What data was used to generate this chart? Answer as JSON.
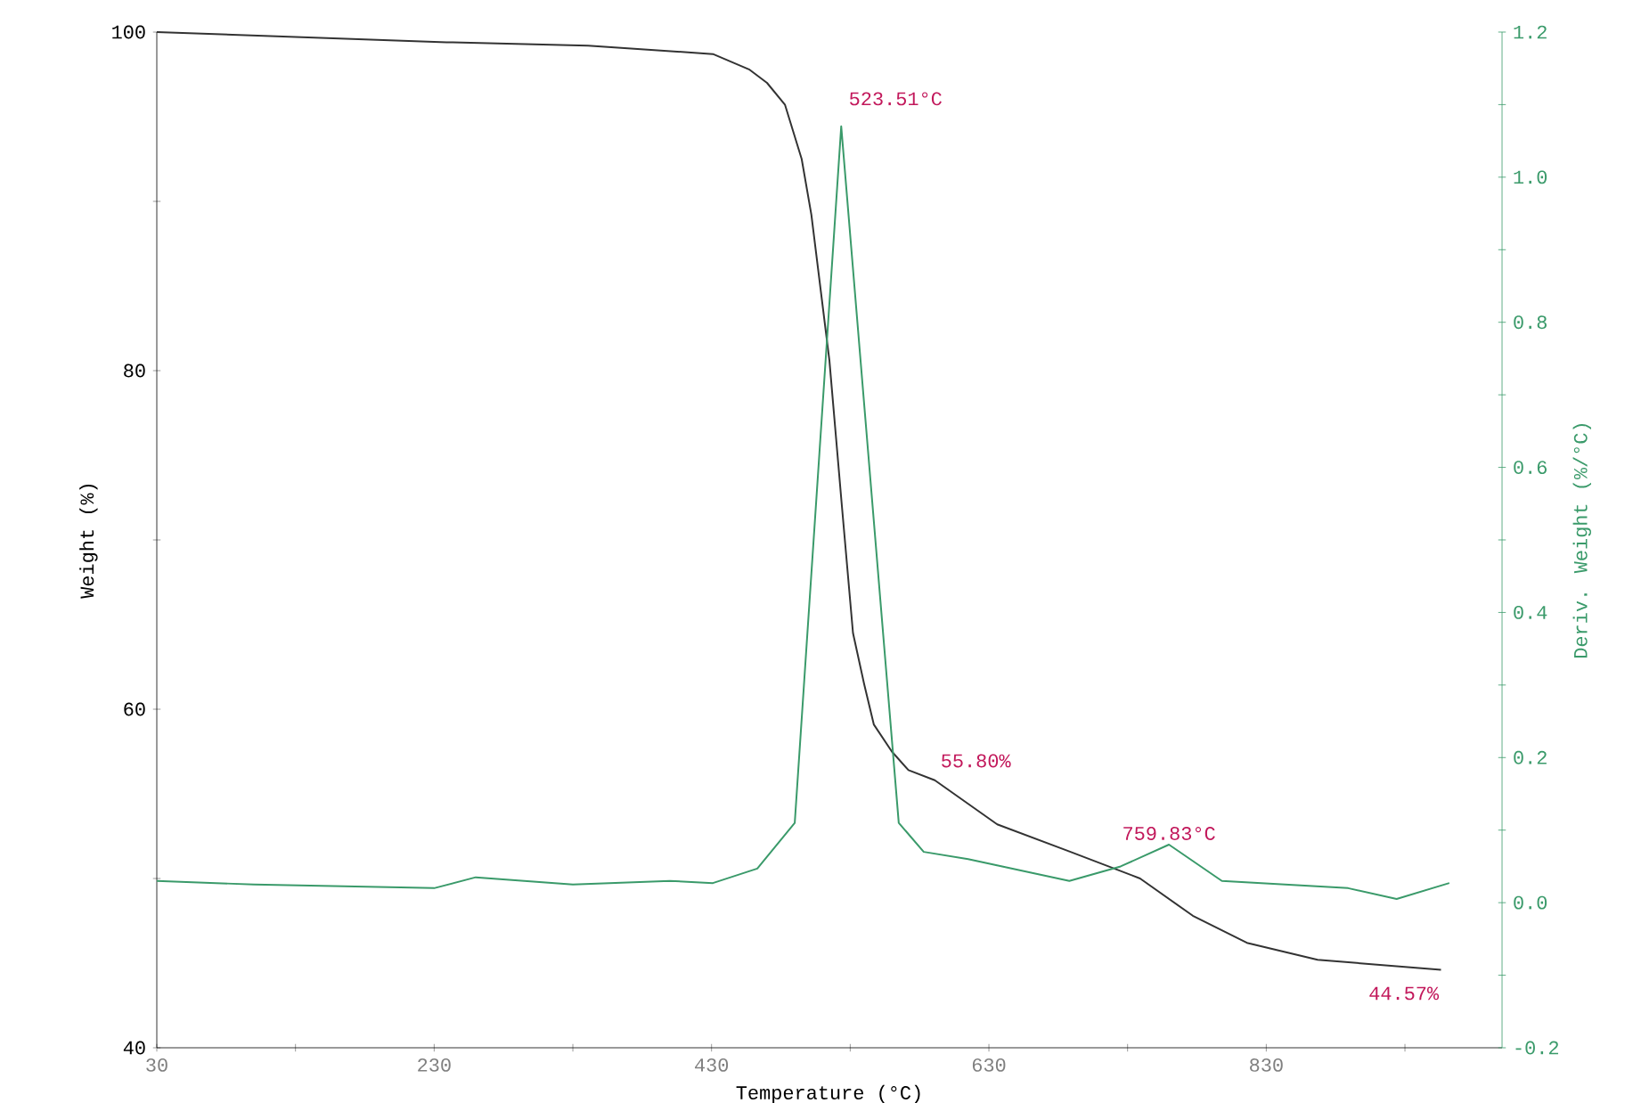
{
  "chart_data": {
    "type": "line",
    "xlabel": "Temperature (°C)",
    "ylabel": "Weight (%)",
    "y2label": "Deriv. Weight (%/°C)",
    "xlim": [
      30,
      1000
    ],
    "ylim": [
      40,
      100
    ],
    "y2lim": [
      -0.2,
      1.2
    ],
    "xticks": [
      30,
      {
        "value": 130,
        "label": null
      },
      230,
      {
        "value": 330,
        "label": null
      },
      430,
      {
        "value": 530,
        "label": null
      },
      630,
      {
        "value": 730,
        "label": null
      },
      830,
      {
        "value": 930,
        "label": null
      }
    ],
    "yticks": [
      40,
      {
        "value": 50,
        "label": null
      },
      60,
      {
        "value": 70,
        "label": null
      },
      80,
      {
        "value": 90,
        "label": null
      },
      100
    ],
    "y2ticks": [
      {
        "value": -0.2,
        "label": "-0.2"
      },
      {
        "value": -0.1,
        "label": null
      },
      {
        "value": 0,
        "label": "0.0"
      },
      {
        "value": 0.1,
        "label": null
      },
      {
        "value": 0.2,
        "label": "0.2"
      },
      {
        "value": 0.3,
        "label": null
      },
      {
        "value": 0.4,
        "label": "0.4"
      },
      {
        "value": 0.5,
        "label": null
      },
      {
        "value": 0.6,
        "label": "0.6"
      },
      {
        "value": 0.7,
        "label": null
      },
      {
        "value": 0.8,
        "label": "0.8"
      },
      {
        "value": 0.9,
        "label": null
      },
      {
        "value": 1.0,
        "label": "1.0"
      },
      {
        "value": 1.1,
        "label": null
      },
      {
        "value": 1.2,
        "label": "1.2"
      }
    ],
    "series": [
      {
        "color": "#333333",
        "x": [
          30,
          239,
          341,
          431,
          457,
          470,
          483,
          495,
          502,
          515,
          524,
          532,
          540,
          547,
          560,
          572,
          591,
          636,
          688,
          739,
          777,
          816,
          867,
          956
        ],
        "values": [
          100,
          99.4,
          99.2,
          98.7,
          97.8,
          97.0,
          95.7,
          92.5,
          89.2,
          80.6,
          72,
          64.5,
          61.5,
          59.1,
          57.5,
          56.4,
          55.8,
          53.2,
          51.6,
          50,
          47.8,
          46.2,
          45.2,
          44.6
        ]
      },
      {
        "color": "#3a9a6a",
        "axis": "y2",
        "x": [
          30,
          100,
          230,
          260,
          330,
          400,
          431,
          463,
          490,
          523.51,
          565,
          583,
          615,
          688,
          725,
          759.83,
          798,
          889,
          924,
          962
        ],
        "values": [
          0.03,
          0.025,
          0.02,
          0.035,
          0.025,
          0.03,
          0.027,
          0.047,
          0.11,
          1.07,
          0.11,
          0.07,
          0.06,
          0.03,
          0.05,
          0.08,
          0.03,
          0.02,
          0.005,
          0.027
        ]
      }
    ],
    "annotations": [
      {
        "text": "523.51°C",
        "x": 523.51,
        "y": 94.7
      },
      {
        "text": "55.80%",
        "x": 591,
        "y": 55.8
      },
      {
        "text": "759.83°C",
        "x": 759.83,
        "y": 51.3
      },
      {
        "text": "44.57%",
        "x": 956,
        "y": 44.57
      }
    ]
  }
}
